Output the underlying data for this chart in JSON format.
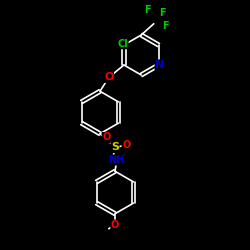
{
  "background_color": "#000000",
  "atom_colors": {
    "C": "#ffffff",
    "N": "#0000cd",
    "O": "#ff0000",
    "S": "#cccc00",
    "F": "#00cc00",
    "Cl": "#00cc00",
    "H": "#ffffff"
  },
  "bond_color": "#ffffff",
  "bond_width": 1.2,
  "figsize": [
    2.5,
    2.5
  ],
  "dpi": 100
}
